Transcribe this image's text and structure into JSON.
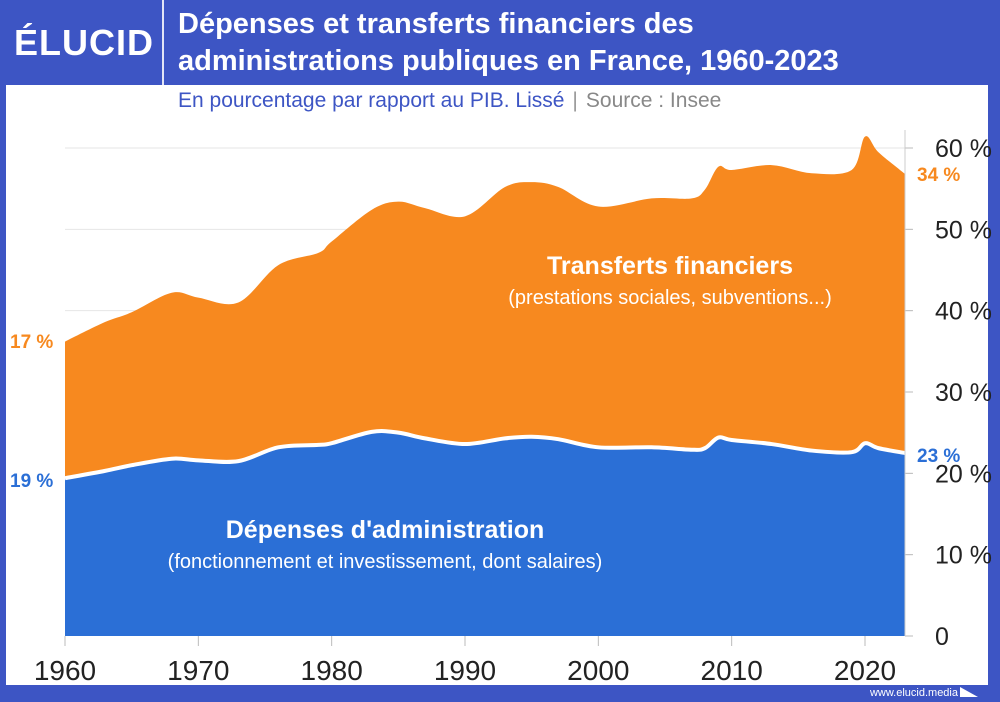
{
  "brand": {
    "logo": "ÉLUCID",
    "website": "www.elucid.media"
  },
  "header": {
    "title_line1": "Dépenses et transferts financiers des",
    "title_line2": "administrations publiques en France, 1960-2023",
    "subtitle": "En pourcentage par rapport au PIB. Lissé",
    "separator": "|",
    "source": "Source : Insee"
  },
  "colors": {
    "header": "#3d55c4",
    "transfers": "#f7891f",
    "admin": "#2b6fd6",
    "grid": "#e6e6e6"
  },
  "chart_data": {
    "type": "area",
    "stacked": true,
    "x": [
      1960,
      1963,
      1965,
      1968,
      1970,
      1973,
      1976,
      1979,
      1980,
      1983,
      1985,
      1987,
      1990,
      1993,
      1995,
      1997,
      2000,
      2004,
      2007,
      2008,
      2009,
      2010,
      2013,
      2016,
      2019,
      2020,
      2021,
      2023
    ],
    "series": [
      {
        "name": "Dépenses d'administration",
        "note": "(fonctionnement et investissement, dont salaires)",
        "values": [
          19.4,
          20.3,
          21,
          21.8,
          21.6,
          21.5,
          23.2,
          23.5,
          23.7,
          25.1,
          25,
          24.3,
          23.6,
          24.3,
          24.5,
          24.2,
          23.2,
          23.2,
          22.9,
          23.1,
          24.4,
          24.1,
          23.6,
          22.8,
          22.6,
          23.7,
          23.1,
          22.5
        ],
        "start_label": "19 %",
        "end_label": "23 %"
      },
      {
        "name": "Transferts financiers",
        "note": "(prestations sociales, subventions...)",
        "values": [
          16.8,
          18.3,
          18.8,
          20.4,
          20,
          19.5,
          22.4,
          23.6,
          24.8,
          27.3,
          28.4,
          28.3,
          28,
          30.9,
          31.3,
          31,
          29.6,
          30.6,
          30.9,
          31.8,
          33.3,
          33.2,
          34.3,
          34.1,
          34.7,
          37.7,
          36.4,
          34.3
        ],
        "start_label": "17 %",
        "end_label": "34 %"
      }
    ],
    "xlim": [
      1960,
      2023
    ],
    "ylim": [
      0,
      60
    ],
    "x_ticks": [
      "1960",
      "1970",
      "1980",
      "1990",
      "2000",
      "2010",
      "2020"
    ],
    "y_ticks": [
      "0",
      "10 %",
      "20 %",
      "30 %",
      "40 %",
      "50 %",
      "60 %"
    ],
    "y_axis_side": "right",
    "grid": true
  }
}
